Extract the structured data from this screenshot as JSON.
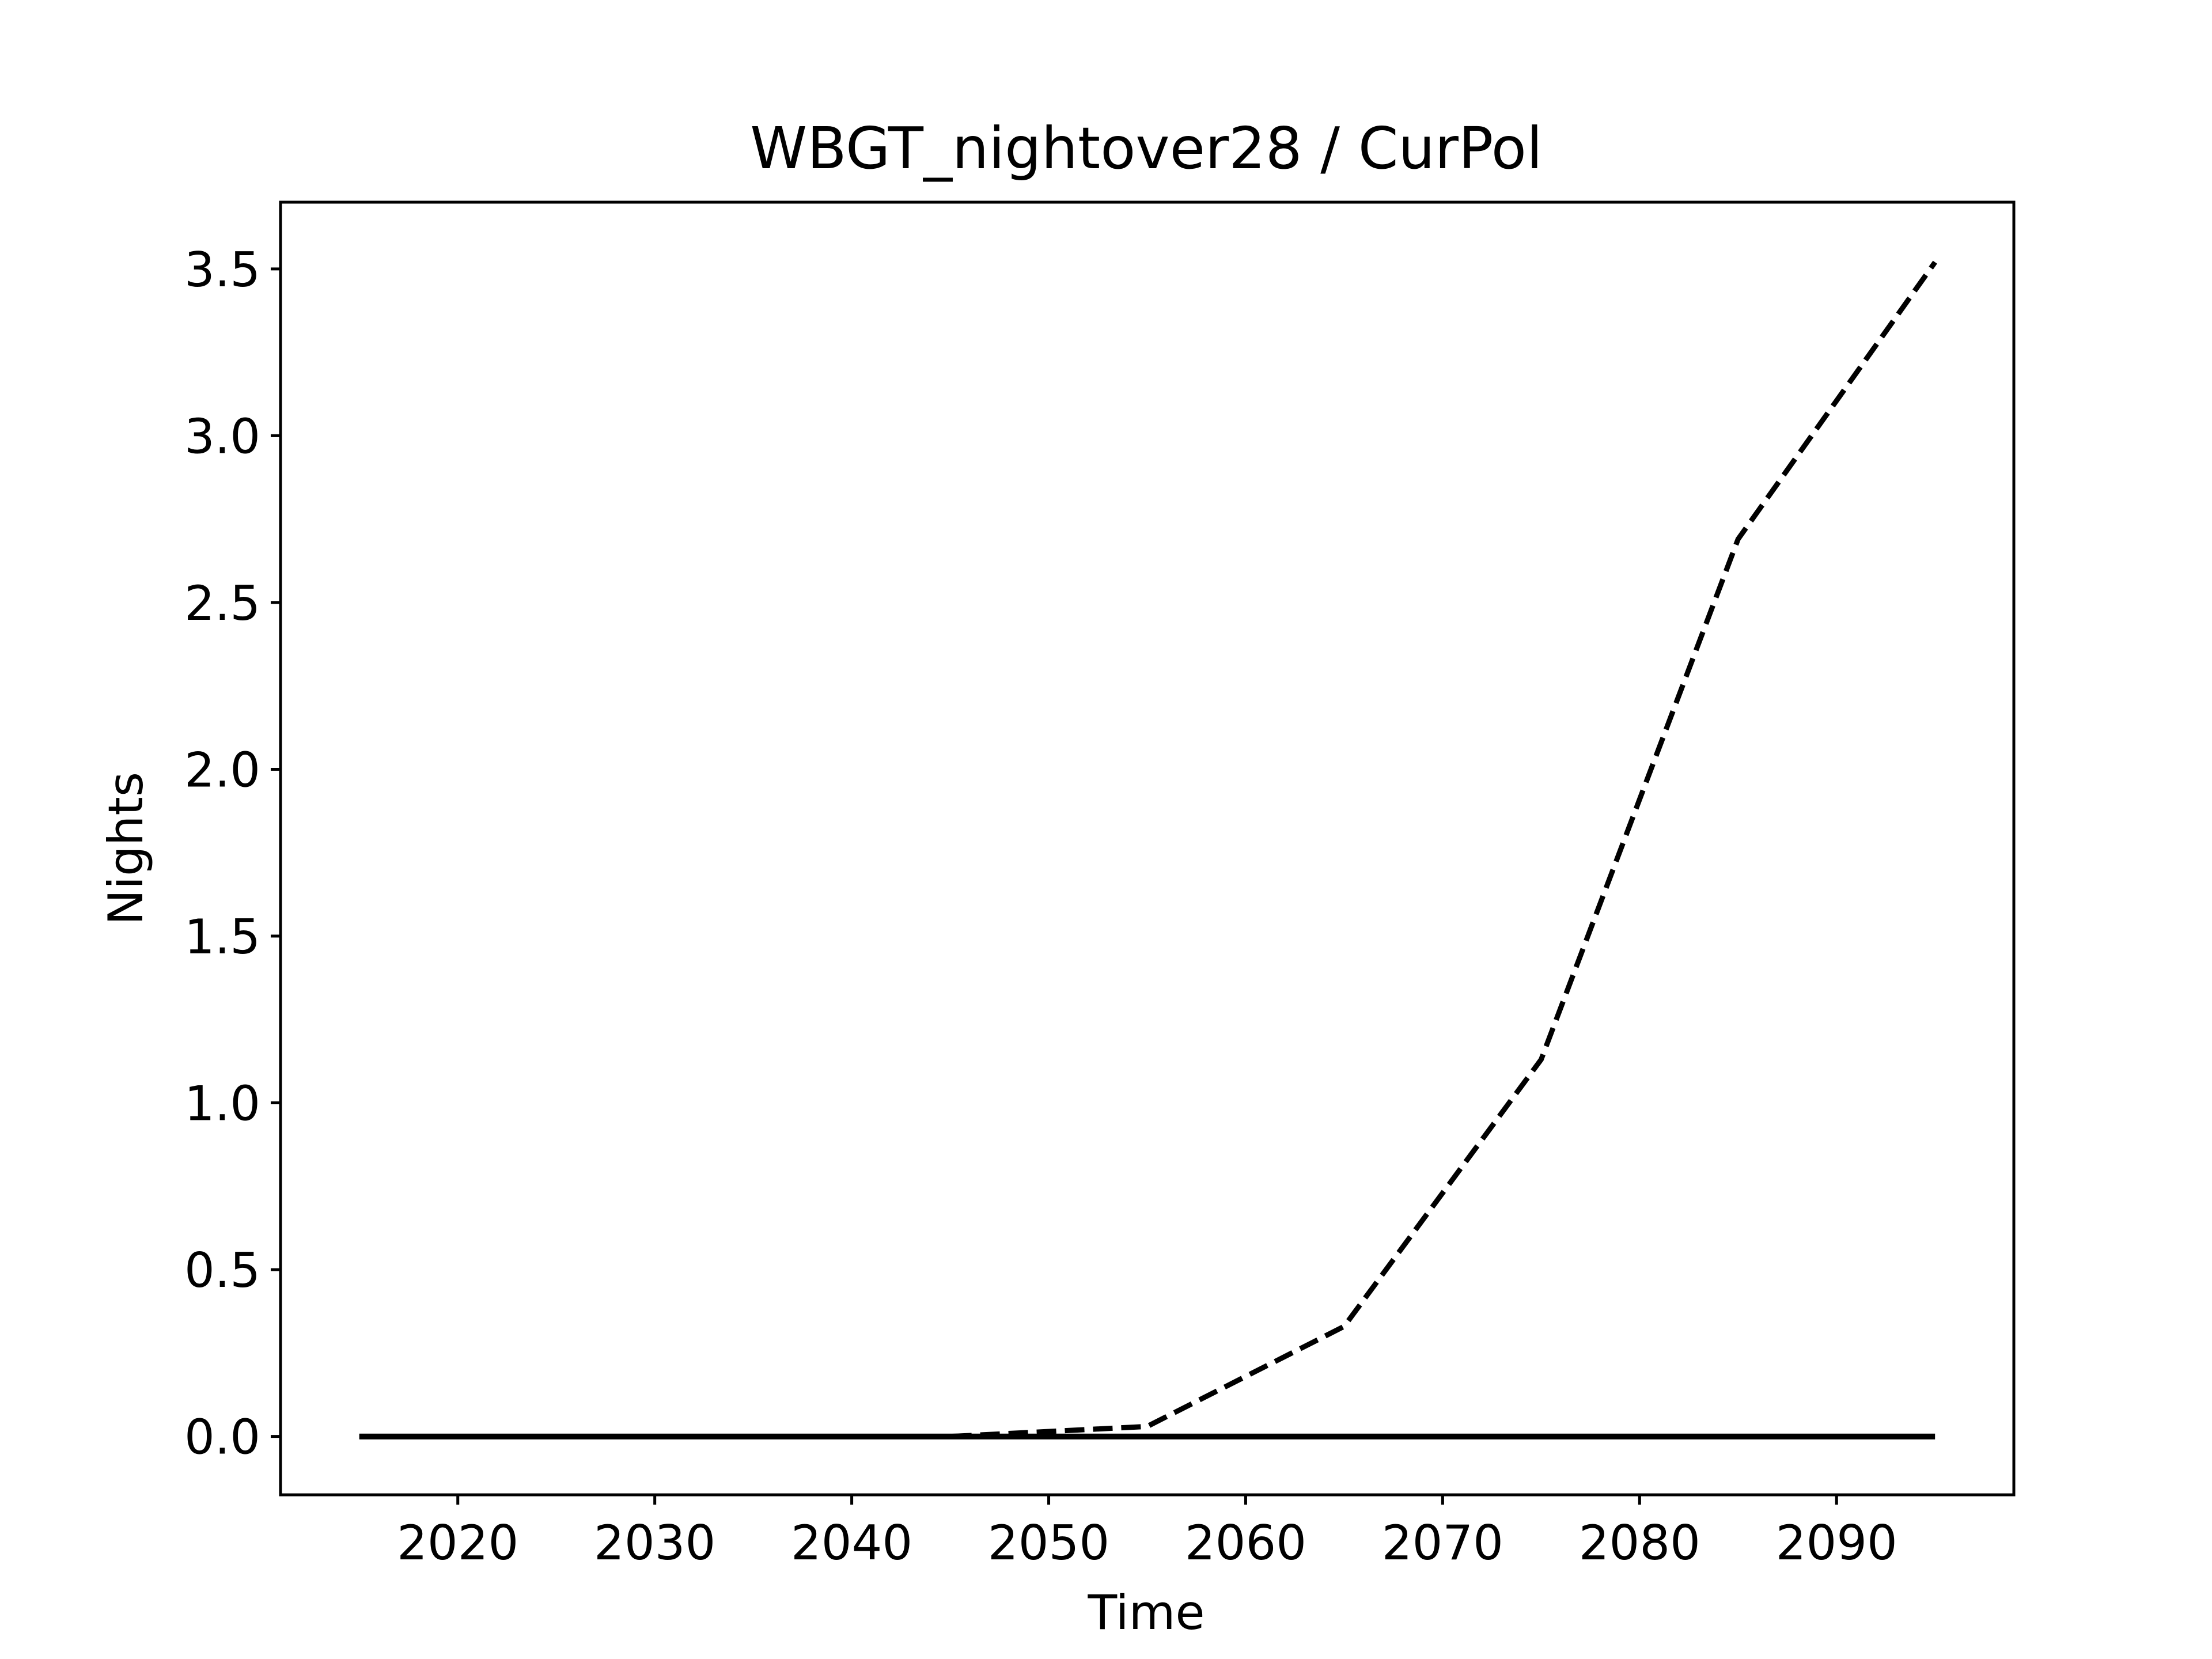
{
  "chart_data": {
    "type": "line",
    "title": "WBGT_nightover28 / CurPol",
    "xlabel": "Time",
    "ylabel": "Nights",
    "xlim": [
      2011,
      2099
    ],
    "ylim": [
      -0.175,
      3.7
    ],
    "x_ticks": [
      2020,
      2030,
      2040,
      2050,
      2060,
      2070,
      2080,
      2090
    ],
    "y_ticks": [
      0.0,
      0.5,
      1.0,
      1.5,
      2.0,
      2.5,
      3.0,
      3.5
    ],
    "x_tick_labels": [
      "2020",
      "2030",
      "2040",
      "2050",
      "2060",
      "2070",
      "2080",
      "2090"
    ],
    "y_tick_labels": [
      "0.0",
      "0.5",
      "1.0",
      "1.5",
      "2.0",
      "2.5",
      "3.0",
      "3.5"
    ],
    "grid": false,
    "series": [
      {
        "style": "dashed",
        "color": "#000000",
        "x": [
          2015,
          2025,
          2035,
          2045,
          2055,
          2065,
          2075,
          2085,
          2095
        ],
        "y": [
          0.0,
          0.0,
          0.0,
          0.0,
          0.03,
          0.33,
          1.13,
          2.69,
          3.52
        ]
      },
      {
        "style": "solid",
        "color": "#000000",
        "x": [
          2015,
          2025,
          2035,
          2045,
          2055,
          2065,
          2075,
          2085,
          2095
        ],
        "y": [
          0.0,
          0.0,
          0.0,
          0.0,
          0.0,
          0.0,
          0.0,
          0.0,
          0.0
        ]
      }
    ]
  }
}
